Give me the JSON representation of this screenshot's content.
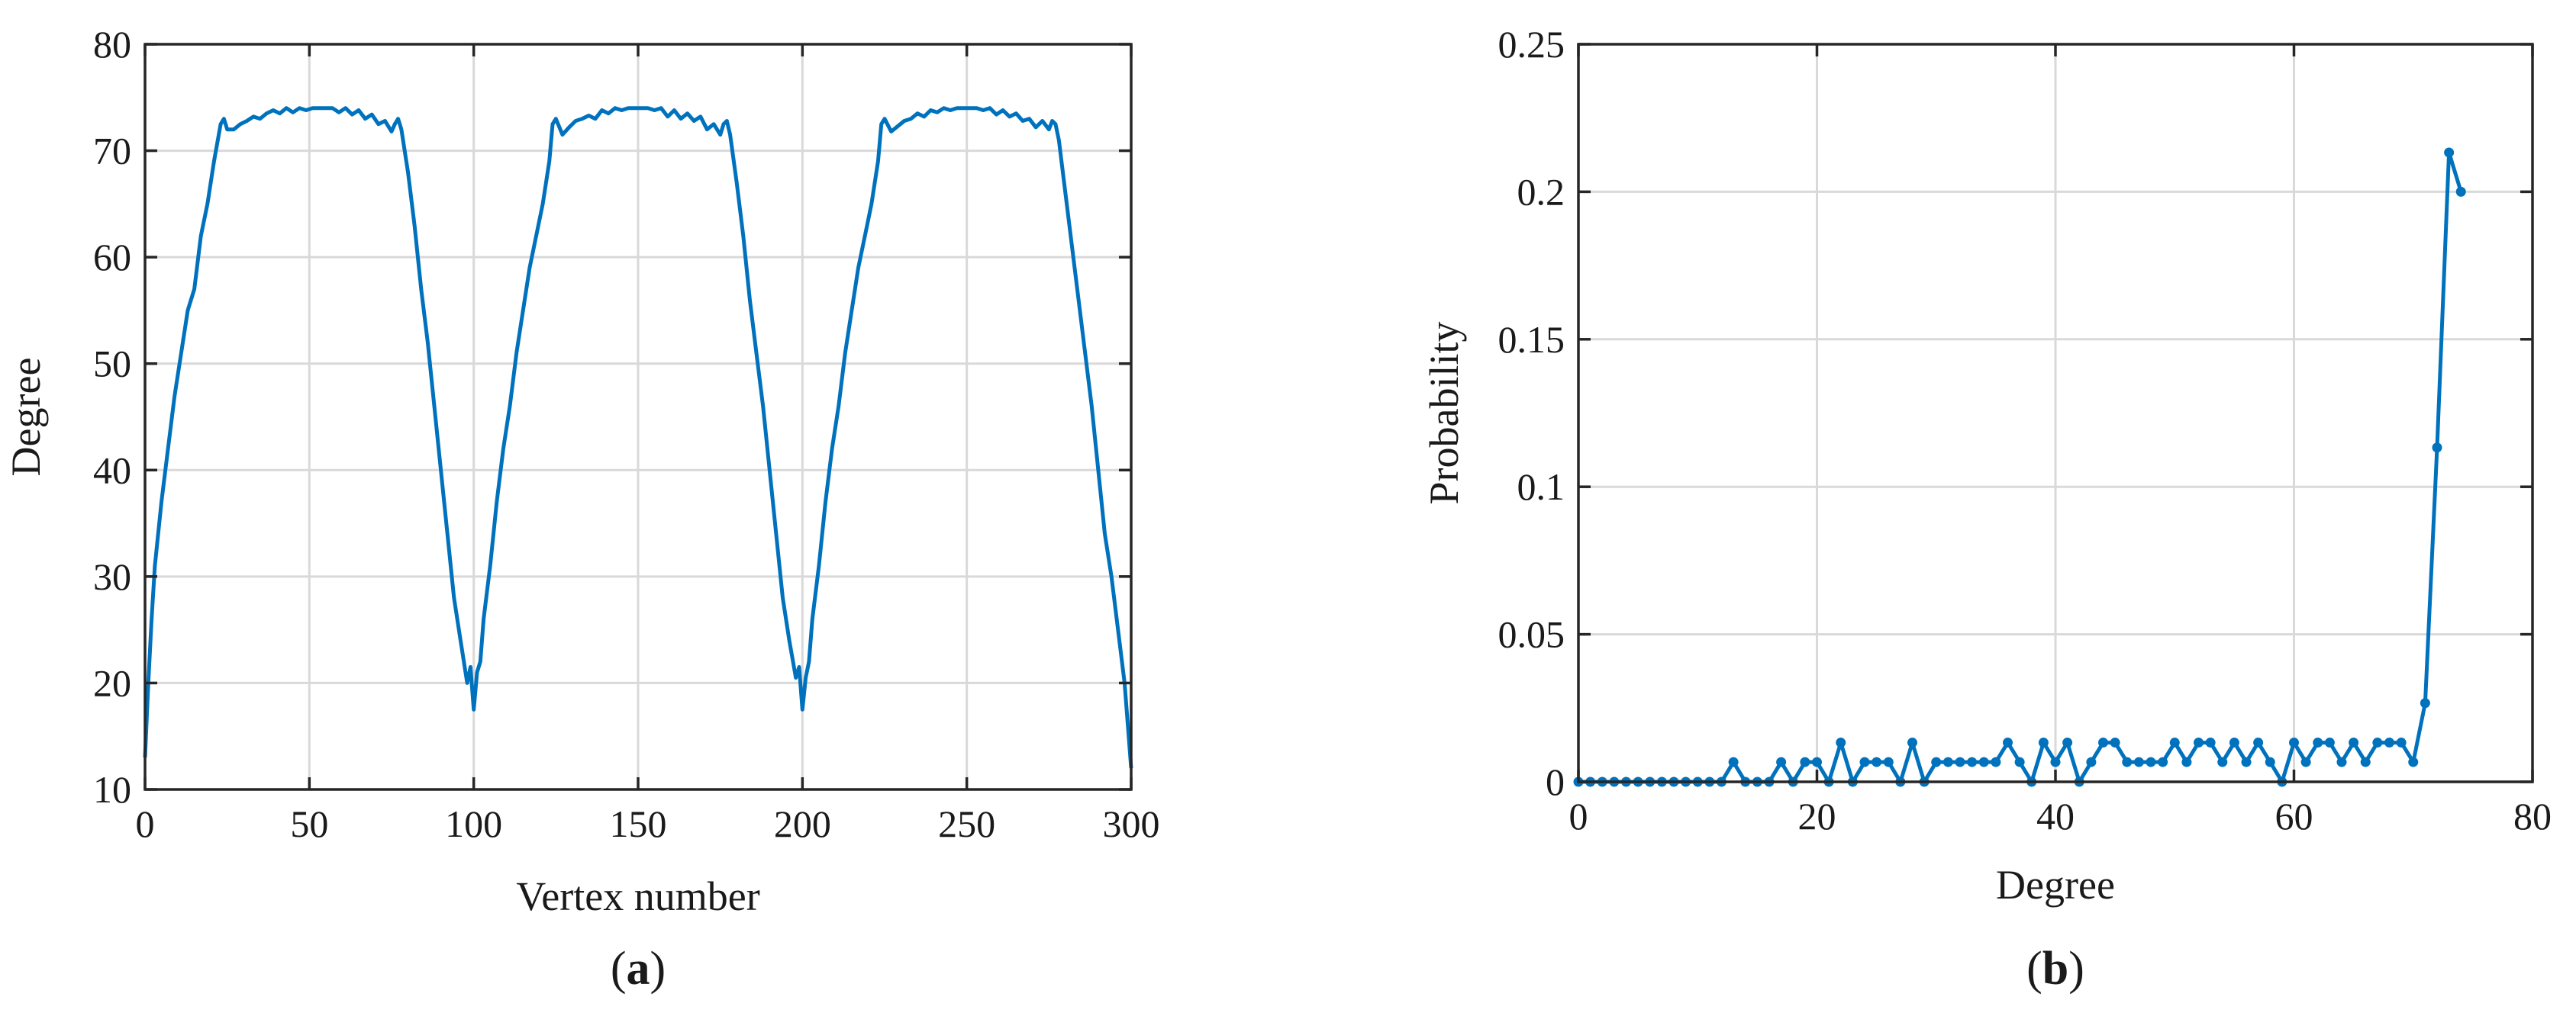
{
  "colors": {
    "series": "#0072BD",
    "grid": "#d9d9d9",
    "axis": "#262626",
    "background": "#ffffff"
  },
  "chart_data": [
    {
      "type": "line",
      "panel_label": "(a)",
      "panel_label_parts": {
        "open": "(",
        "letter": "a",
        "close": ")"
      },
      "title": "",
      "xlabel": "Vertex number",
      "ylabel": "Degree",
      "xlim": [
        0,
        300
      ],
      "ylim": [
        10,
        80
      ],
      "xticks": [
        0,
        50,
        100,
        150,
        200,
        250,
        300
      ],
      "yticks": [
        10,
        20,
        30,
        40,
        50,
        60,
        70,
        80
      ],
      "grid": true,
      "markers": false,
      "series": [
        {
          "x": [
            0,
            1,
            2,
            3,
            5,
            7,
            9,
            11,
            13,
            15,
            17,
            19,
            21,
            23,
            24,
            25,
            27,
            29,
            31,
            33,
            35,
            37,
            39,
            41,
            43,
            45,
            47,
            49,
            51,
            53,
            55,
            57,
            59,
            61,
            63,
            65,
            67,
            69,
            71,
            73,
            75,
            76,
            77,
            78,
            80,
            82,
            84,
            86,
            88,
            90,
            92,
            94,
            96,
            98,
            99,
            100,
            101,
            102,
            103,
            105,
            107,
            109,
            111,
            113,
            115,
            117,
            119,
            121,
            123,
            124,
            125,
            127,
            129,
            131,
            133,
            135,
            137,
            139,
            141,
            143,
            145,
            147,
            149,
            151,
            153,
            155,
            157,
            159,
            161,
            163,
            165,
            167,
            169,
            171,
            173,
            175,
            176,
            177,
            178,
            180,
            182,
            184,
            186,
            188,
            190,
            192,
            194,
            196,
            198,
            199,
            200,
            201,
            202,
            203,
            205,
            207,
            209,
            211,
            213,
            215,
            217,
            219,
            221,
            223,
            224,
            225,
            227,
            229,
            231,
            233,
            235,
            237,
            239,
            241,
            243,
            245,
            247,
            249,
            251,
            253,
            255,
            257,
            259,
            261,
            263,
            265,
            267,
            269,
            271,
            273,
            275,
            276,
            277,
            278,
            280,
            282,
            284,
            286,
            288,
            290,
            292,
            294,
            296,
            298,
            300
          ],
          "y": [
            13,
            20,
            26,
            31,
            37,
            42,
            47,
            51,
            55,
            57,
            62,
            65,
            69,
            72.5,
            73,
            72,
            72,
            72.5,
            72.8,
            73.2,
            73,
            73.5,
            73.8,
            73.5,
            74,
            73.6,
            74,
            73.8,
            74,
            74,
            74,
            74,
            73.6,
            74,
            73.4,
            73.8,
            73,
            73.4,
            72.5,
            72.8,
            71.8,
            72.5,
            73,
            72,
            68,
            63,
            57,
            52,
            46,
            40,
            34,
            28,
            24,
            20,
            21.5,
            17.5,
            21,
            22,
            26,
            31,
            37,
            42,
            46,
            51,
            55,
            59,
            62,
            65,
            69,
            72.5,
            73,
            71.5,
            72.2,
            72.8,
            73,
            73.3,
            73,
            73.8,
            73.5,
            74,
            73.8,
            74,
            74,
            74,
            74,
            73.8,
            74,
            73.2,
            73.8,
            73,
            73.5,
            72.8,
            73.2,
            72,
            72.5,
            71.5,
            72.5,
            72.8,
            71.5,
            67,
            62,
            56,
            51,
            46,
            40,
            34,
            28,
            24,
            20.5,
            21.5,
            17.5,
            20.5,
            22,
            26,
            31,
            37,
            42,
            46,
            51,
            55,
            59,
            62,
            65,
            69,
            72.5,
            73,
            71.8,
            72.3,
            72.8,
            73,
            73.5,
            73.2,
            73.8,
            73.6,
            74,
            73.8,
            74,
            74,
            74,
            74,
            73.8,
            74,
            73.4,
            73.8,
            73.2,
            73.5,
            72.8,
            73,
            72.2,
            72.8,
            72,
            72.8,
            72.5,
            71,
            66,
            61,
            56,
            51,
            46,
            40,
            34,
            30,
            25,
            20,
            12
          ]
        }
      ]
    },
    {
      "type": "line",
      "panel_label": "(b)",
      "panel_label_parts": {
        "open": "(",
        "letter": "b",
        "close": ")"
      },
      "title": "",
      "xlabel": "Degree",
      "ylabel": "Probability",
      "xlim": [
        0,
        80
      ],
      "ylim": [
        0,
        0.25
      ],
      "xticks": [
        0,
        20,
        40,
        60,
        80
      ],
      "yticks": [
        0,
        0.05,
        0.1,
        0.15,
        0.2,
        0.25
      ],
      "ytick_labels": [
        "0",
        "0.05",
        "0.1",
        "0.15",
        "0.2",
        "0.25"
      ],
      "grid": true,
      "markers": true,
      "series": [
        {
          "x": [
            0,
            1,
            2,
            3,
            4,
            5,
            6,
            7,
            8,
            9,
            10,
            11,
            12,
            13,
            14,
            15,
            16,
            17,
            18,
            19,
            20,
            21,
            22,
            23,
            24,
            25,
            26,
            27,
            28,
            29,
            30,
            31,
            32,
            33,
            34,
            35,
            36,
            37,
            38,
            39,
            40,
            41,
            42,
            43,
            44,
            45,
            46,
            47,
            48,
            49,
            50,
            51,
            52,
            53,
            54,
            55,
            56,
            57,
            58,
            59,
            60,
            61,
            62,
            63,
            64,
            65,
            66,
            67,
            68,
            69,
            70,
            71,
            72,
            73,
            74
          ],
          "y": [
            0,
            0,
            0,
            0,
            0,
            0,
            0,
            0,
            0,
            0,
            0,
            0,
            0,
            0.0067,
            0,
            0,
            0,
            0.0067,
            0,
            0.0067,
            0.0067,
            0,
            0.0133,
            0,
            0.0067,
            0.0067,
            0.0067,
            0,
            0.0133,
            0,
            0.0067,
            0.0067,
            0.0067,
            0.0067,
            0.0067,
            0.0067,
            0.0133,
            0.0067,
            0,
            0.0133,
            0.0067,
            0.0133,
            0,
            0.0067,
            0.0133,
            0.0133,
            0.0067,
            0.0067,
            0.0067,
            0.0067,
            0.0133,
            0.0067,
            0.0133,
            0.0133,
            0.0067,
            0.0133,
            0.0067,
            0.0133,
            0.0067,
            0,
            0.0133,
            0.0067,
            0.0133,
            0.0133,
            0.0067,
            0.0133,
            0.0067,
            0.0133,
            0.0133,
            0.0133,
            0.0067,
            0.0267,
            0.1133,
            0.2133,
            0.2
          ]
        }
      ]
    }
  ]
}
